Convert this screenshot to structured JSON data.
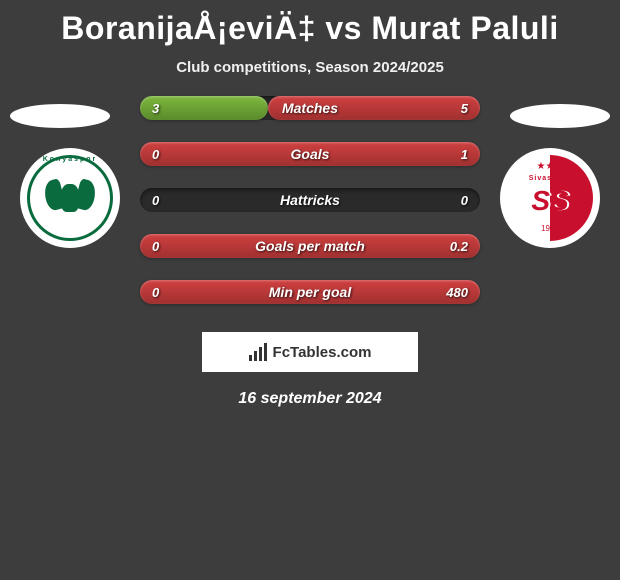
{
  "title": "BoranijaÅ¡eviÄ‡ vs Murat Paluli",
  "subtitle": "Club competitions, Season 2024/2025",
  "date": "16 september 2024",
  "footer_brand": "FcTables.com",
  "colors": {
    "background": "#3d3d3d",
    "bar_track": "#2a2a2a",
    "left_fill": "#7fb83f",
    "right_fill": "#d04040",
    "text": "#ffffff",
    "konya_green": "#0a6b3f",
    "sivas_red": "#c8102e"
  },
  "clubs": {
    "left": {
      "name": "Konyaspor",
      "year": "1987"
    },
    "right": {
      "name": "Sivasspor",
      "year": "1967"
    }
  },
  "stats": [
    {
      "label": "Matches",
      "left_val": "3",
      "right_val": "5",
      "left_pct": 37.5,
      "right_pct": 62.5
    },
    {
      "label": "Goals",
      "left_val": "0",
      "right_val": "1",
      "left_pct": 0,
      "right_pct": 100
    },
    {
      "label": "Hattricks",
      "left_val": "0",
      "right_val": "0",
      "left_pct": 0,
      "right_pct": 0
    },
    {
      "label": "Goals per match",
      "left_val": "0",
      "right_val": "0.2",
      "left_pct": 0,
      "right_pct": 100
    },
    {
      "label": "Min per goal",
      "left_val": "0",
      "right_val": "480",
      "left_pct": 0,
      "right_pct": 100
    }
  ]
}
